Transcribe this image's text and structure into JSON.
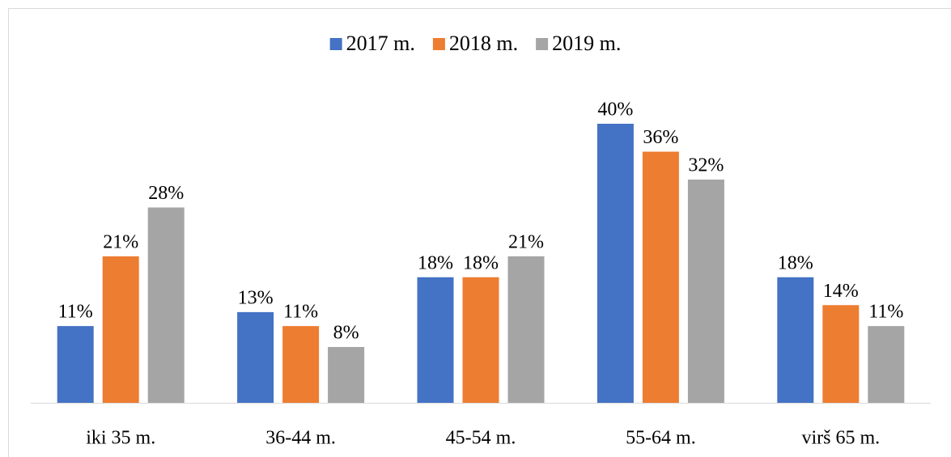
{
  "chart_data": {
    "type": "bar",
    "categories": [
      "iki 35 m.",
      "36-44 m.",
      "45-54 m.",
      "55-64 m.",
      "virš 65 m."
    ],
    "series": [
      {
        "name": "2017 m.",
        "color": "#4472c4",
        "values": [
          11,
          13,
          18,
          40,
          18
        ],
        "value_labels": [
          "11%",
          "13%",
          "18%",
          "40%",
          "18%"
        ]
      },
      {
        "name": "2018 m.",
        "color": "#ed7d31",
        "values": [
          21,
          11,
          18,
          36,
          14
        ],
        "value_labels": [
          "21%",
          "11%",
          "18%",
          "36%",
          "14%"
        ]
      },
      {
        "name": "2019 m.",
        "color": "#a5a5a5",
        "values": [
          28,
          8,
          21,
          32,
          11
        ],
        "value_labels": [
          "28%",
          "8%",
          "21%",
          "32%",
          "11%"
        ]
      }
    ],
    "legend": "top"
  }
}
